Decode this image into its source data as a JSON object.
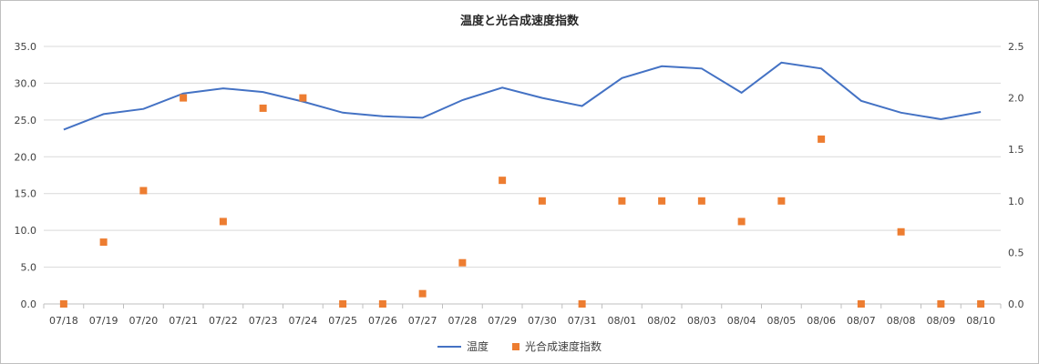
{
  "chart_data": {
    "type": "line+scatter",
    "title": "温度と光合成速度指数",
    "categories": [
      "07/18",
      "07/19",
      "07/20",
      "07/21",
      "07/22",
      "07/23",
      "07/24",
      "07/25",
      "07/26",
      "07/27",
      "07/28",
      "07/29",
      "07/30",
      "07/31",
      "08/01",
      "08/02",
      "08/03",
      "08/04",
      "08/05",
      "08/06",
      "08/07",
      "08/08",
      "08/09",
      "08/10"
    ],
    "series": [
      {
        "name": "温度",
        "kind": "line",
        "axis": "left",
        "color": "#4472c4",
        "values": [
          23.7,
          25.8,
          26.5,
          28.6,
          29.3,
          28.8,
          27.5,
          26.0,
          25.5,
          25.3,
          27.7,
          29.4,
          28.0,
          26.9,
          30.7,
          32.3,
          32.0,
          28.7,
          32.8,
          32.0,
          27.6,
          26.0,
          25.1,
          26.1
        ]
      },
      {
        "name": "光合成速度指数",
        "kind": "scatter",
        "axis": "right",
        "color": "#ed7d31",
        "values": [
          0.0,
          0.6,
          1.1,
          2.0,
          0.8,
          1.9,
          2.0,
          0.0,
          0.0,
          0.1,
          0.4,
          1.2,
          1.0,
          0.0,
          1.0,
          1.0,
          1.0,
          0.8,
          1.0,
          1.6,
          0.0,
          0.7,
          0.0,
          0.0
        ]
      }
    ],
    "y_left": {
      "min": 0,
      "max": 35,
      "step": 5,
      "decimals": 1
    },
    "y_right": {
      "min": 0,
      "max": 2.5,
      "step": 0.5,
      "decimals": 1
    },
    "grid": true,
    "legend_position": "bottom"
  }
}
